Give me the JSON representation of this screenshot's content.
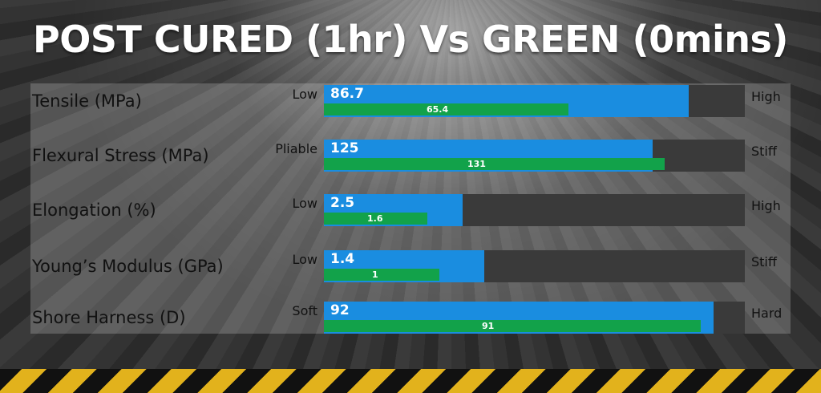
{
  "title": "POST CURED (1hr) Vs GREEN (0mins)",
  "colors": {
    "post_cured": "#1a8de0",
    "green": "#12a24a",
    "track": "#3a3a3a"
  },
  "chart_data": {
    "type": "bar",
    "orientation": "horizontal",
    "title": "POST CURED (1hr) Vs GREEN (0mins)",
    "rows": [
      {
        "label": "Tensile (MPa)",
        "low": "Low",
        "high": "High",
        "post_cured": 86.7,
        "green": 65.4,
        "post_cured_label": "86.7",
        "green_label": "65.4",
        "post_cured_fill": 0.867,
        "green_fill": 0.58
      },
      {
        "label": "Flexural Stress (MPa)",
        "low": "Pliable",
        "high": "Stiff",
        "post_cured": 125,
        "green": 131,
        "post_cured_label": "125",
        "green_label": "131",
        "post_cured_fill": 0.78,
        "green_fill": 0.81
      },
      {
        "label": "Elongation (%)",
        "low": "Low",
        "high": "High",
        "post_cured": 2.5,
        "green": 1.6,
        "post_cured_label": "2.5",
        "green_label": "1.6",
        "post_cured_fill": 0.33,
        "green_fill": 0.245
      },
      {
        "label": "Young’s Modulus (GPa)",
        "low": "Low",
        "high": "Stiff",
        "post_cured": 1.4,
        "green": 1,
        "post_cured_label": "1.4",
        "green_label": "1",
        "post_cured_fill": 0.38,
        "green_fill": 0.275
      },
      {
        "label": "Shore Harness (D)",
        "low": "Soft",
        "high": "Hard",
        "post_cured": 92,
        "green": 91,
        "post_cured_label": "92",
        "green_label": "91",
        "post_cured_fill": 0.925,
        "green_fill": 0.895
      }
    ]
  }
}
